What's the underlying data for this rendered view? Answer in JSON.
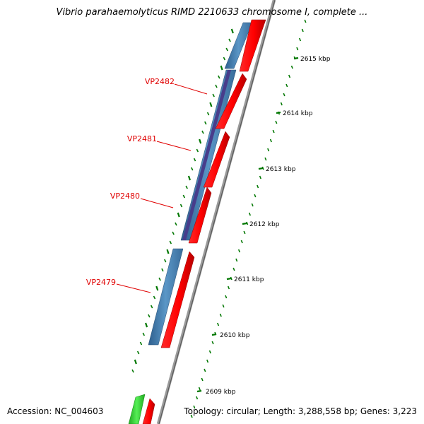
{
  "title": "Vibrio parahaemolyticus RIMD 2210633 chromosome I, complete ...",
  "footer": {
    "accession": "Accession: NC_004603",
    "summary": "Topology: circular; Length: 3,288,558 bp; Genes: 3,223"
  },
  "gene_labels": [
    "VP2482",
    "VP2481",
    "VP2480",
    "VP2479"
  ],
  "scale_labels": [
    "2615 kbp",
    "2614 kbp",
    "2613 kbp",
    "2612 kbp",
    "2611 kbp",
    "2610 kbp",
    "2609 kbp"
  ],
  "colors": {
    "gene_label": "#e00000",
    "forward_gene": "#ff0000",
    "protein_feature": "#4682b4",
    "domain_feature": "#483d8b",
    "other_feature": "#22cc22",
    "tick_marks": "#007700",
    "backbone": "#808080"
  }
}
